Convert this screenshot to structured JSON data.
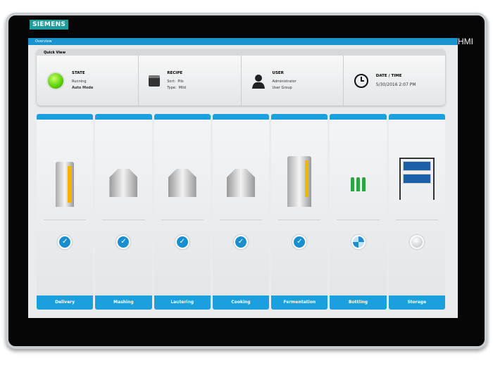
{
  "device": {
    "logo": "SIEMENS",
    "brand": "SIMATIC HMI"
  },
  "header": {
    "title": "Overview"
  },
  "quick_view": {
    "title": "Quick View",
    "state": {
      "title": "STATE",
      "line1": "Running",
      "line2": "Auto Mode",
      "indicator_color": "#56d000"
    },
    "recipe": {
      "title": "RECIPE",
      "sort_label": "Sort:",
      "sort_value": "Pils",
      "type_label": "Type:",
      "type_value": "Mild"
    },
    "user": {
      "title": "USER",
      "name": "Administrator",
      "group": "User Group"
    },
    "datetime": {
      "title": "DATE / TIME",
      "value": "5/30/2016 2:07 PM"
    }
  },
  "steps": [
    {
      "label": "Delivery",
      "status": "done"
    },
    {
      "label": "Mashing",
      "status": "done"
    },
    {
      "label": "Lautering",
      "status": "done"
    },
    {
      "label": "Cooking",
      "status": "done"
    },
    {
      "label": "Fermentation",
      "status": "done"
    },
    {
      "label": "Bottling",
      "status": "running"
    },
    {
      "label": "Storage",
      "status": "idle"
    }
  ],
  "colors": {
    "accent": "#1aa0dc",
    "level": "#f4b400"
  }
}
